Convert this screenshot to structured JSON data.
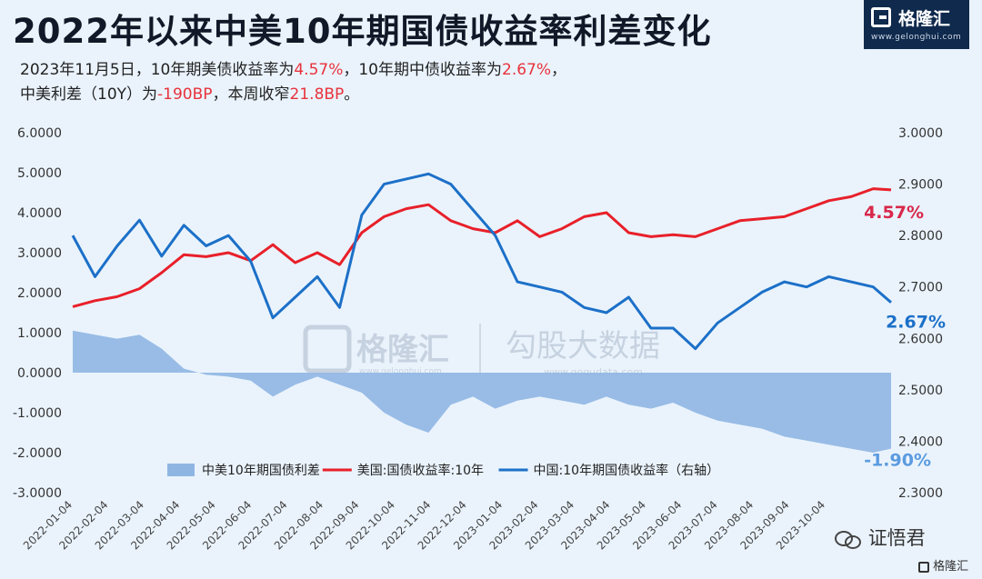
{
  "header": {
    "title": "2022年以来中美10年期国债收益率利差变化",
    "line1_a": "2023年11月5日，10年期美债收益率为",
    "line1_b": "4.57%",
    "line1_c": "，10年期中债收益率为",
    "line1_d": "2.67%",
    "line1_e": "，",
    "line2_a": "中美利差（10Y）为",
    "line2_b": "-190BP",
    "line2_c": "，本周收窄",
    "line2_d": "21.8BP",
    "line2_e": "。"
  },
  "logo": {
    "name": "格隆汇",
    "url": "www.gelonghui.com"
  },
  "watermark": {
    "left": "格隆汇",
    "left_url": "www.gelonghui.com",
    "right": "勾股大数据",
    "right_url": "www.gogudata.com"
  },
  "footer": {
    "wechat": "证悟君",
    "corner": "格隆汇"
  },
  "colors": {
    "background": "#eaf3fc",
    "spread_fill": "#8fb6e3",
    "us_line": "#e8202a",
    "cn_line": "#1c70c8",
    "us_label": "#d8284a",
    "cn_label": "#1c70c8",
    "spread_label": "#5b9be0"
  },
  "chart_data": {
    "type": "line",
    "title": "2022年以来中美10年期国债收益率利差变化",
    "xlabel": "",
    "ylabel": "",
    "x_ticks": [
      "2022-01-04",
      "2022-02-04",
      "2022-03-04",
      "2022-04-04",
      "2022-05-04",
      "2022-06-04",
      "2022-07-04",
      "2022-08-04",
      "2022-09-04",
      "2022-10-04",
      "2022-11-04",
      "2022-12-04",
      "2023-01-04",
      "2023-02-04",
      "2023-03-04",
      "2023-04-04",
      "2023-05-04",
      "2023-06-04",
      "2023-07-04",
      "2023-08-04",
      "2023-09-04",
      "2023-10-04"
    ],
    "left_axis": {
      "ticks": [
        "6.0000",
        "5.0000",
        "4.0000",
        "3.0000",
        "2.0000",
        "1.0000",
        "0.0000",
        "-1.0000",
        "-2.0000",
        "-3.0000"
      ],
      "range": [
        -3,
        6
      ]
    },
    "right_axis": {
      "ticks": [
        "3.0000",
        "2.9000",
        "2.8000",
        "2.7000",
        "2.6000",
        "2.5000",
        "2.4000",
        "2.3000"
      ],
      "range": [
        2.3,
        3.0
      ]
    },
    "legend_position": "bottom-center",
    "grid": false,
    "end_labels": {
      "us": "4.57%",
      "cn": "2.67%",
      "spread": "-1.90%"
    },
    "series": [
      {
        "name": "中美10年期国债利差",
        "axis": "left",
        "kind": "area",
        "x": [
          2022.0,
          2022.05,
          2022.1,
          2022.15,
          2022.2,
          2022.25,
          2022.3,
          2022.35,
          2022.4,
          2022.45,
          2022.5,
          2022.55,
          2022.6,
          2022.65,
          2022.7,
          2022.75,
          2022.8,
          2022.85,
          2022.9,
          2022.95,
          2023.0,
          2023.05,
          2023.1,
          2023.15,
          2023.2,
          2023.25,
          2023.3,
          2023.35,
          2023.4,
          2023.45,
          2023.5,
          2023.55,
          2023.6,
          2023.65,
          2023.7,
          2023.75,
          2023.8,
          2023.84
        ],
        "values": [
          1.05,
          0.95,
          0.85,
          0.95,
          0.6,
          0.1,
          -0.05,
          -0.1,
          -0.2,
          -0.6,
          -0.3,
          -0.1,
          -0.3,
          -0.5,
          -1.0,
          -1.3,
          -1.5,
          -0.8,
          -0.6,
          -0.9,
          -0.7,
          -0.6,
          -0.7,
          -0.8,
          -0.6,
          -0.8,
          -0.9,
          -0.75,
          -1.0,
          -1.2,
          -1.3,
          -1.4,
          -1.6,
          -1.7,
          -1.8,
          -1.9,
          -2.0,
          -1.9
        ]
      },
      {
        "name": "美国:国债收益率:10年",
        "axis": "left",
        "kind": "line",
        "x": [
          2022.0,
          2022.05,
          2022.1,
          2022.15,
          2022.2,
          2022.25,
          2022.3,
          2022.35,
          2022.4,
          2022.45,
          2022.5,
          2022.55,
          2022.6,
          2022.65,
          2022.7,
          2022.75,
          2022.8,
          2022.85,
          2022.9,
          2022.95,
          2023.0,
          2023.05,
          2023.1,
          2023.15,
          2023.2,
          2023.25,
          2023.3,
          2023.35,
          2023.4,
          2023.45,
          2023.5,
          2023.55,
          2023.6,
          2023.65,
          2023.7,
          2023.75,
          2023.8,
          2023.84
        ],
        "values": [
          1.65,
          1.8,
          1.9,
          2.1,
          2.5,
          2.95,
          2.9,
          3.0,
          2.8,
          3.2,
          2.75,
          3.0,
          2.7,
          3.5,
          3.9,
          4.1,
          4.2,
          3.8,
          3.6,
          3.5,
          3.8,
          3.4,
          3.6,
          3.9,
          4.0,
          3.5,
          3.4,
          3.45,
          3.4,
          3.6,
          3.8,
          3.85,
          3.9,
          4.1,
          4.3,
          4.4,
          4.6,
          4.57
        ]
      },
      {
        "name": "中国:10年期国债收益率（右轴）",
        "axis": "right",
        "kind": "line",
        "x": [
          2022.0,
          2022.05,
          2022.1,
          2022.15,
          2022.2,
          2022.25,
          2022.3,
          2022.35,
          2022.4,
          2022.45,
          2022.5,
          2022.55,
          2022.6,
          2022.65,
          2022.7,
          2022.75,
          2022.8,
          2022.85,
          2022.9,
          2022.95,
          2023.0,
          2023.05,
          2023.1,
          2023.15,
          2023.2,
          2023.25,
          2023.3,
          2023.35,
          2023.4,
          2023.45,
          2023.5,
          2023.55,
          2023.6,
          2023.65,
          2023.7,
          2023.75,
          2023.8,
          2023.84
        ],
        "values": [
          2.8,
          2.72,
          2.78,
          2.83,
          2.76,
          2.82,
          2.78,
          2.8,
          2.75,
          2.64,
          2.68,
          2.72,
          2.66,
          2.84,
          2.9,
          2.91,
          2.92,
          2.9,
          2.85,
          2.8,
          2.71,
          2.7,
          2.69,
          2.66,
          2.65,
          2.68,
          2.62,
          2.62,
          2.58,
          2.63,
          2.66,
          2.69,
          2.71,
          2.7,
          2.72,
          2.71,
          2.7,
          2.67
        ]
      }
    ]
  }
}
